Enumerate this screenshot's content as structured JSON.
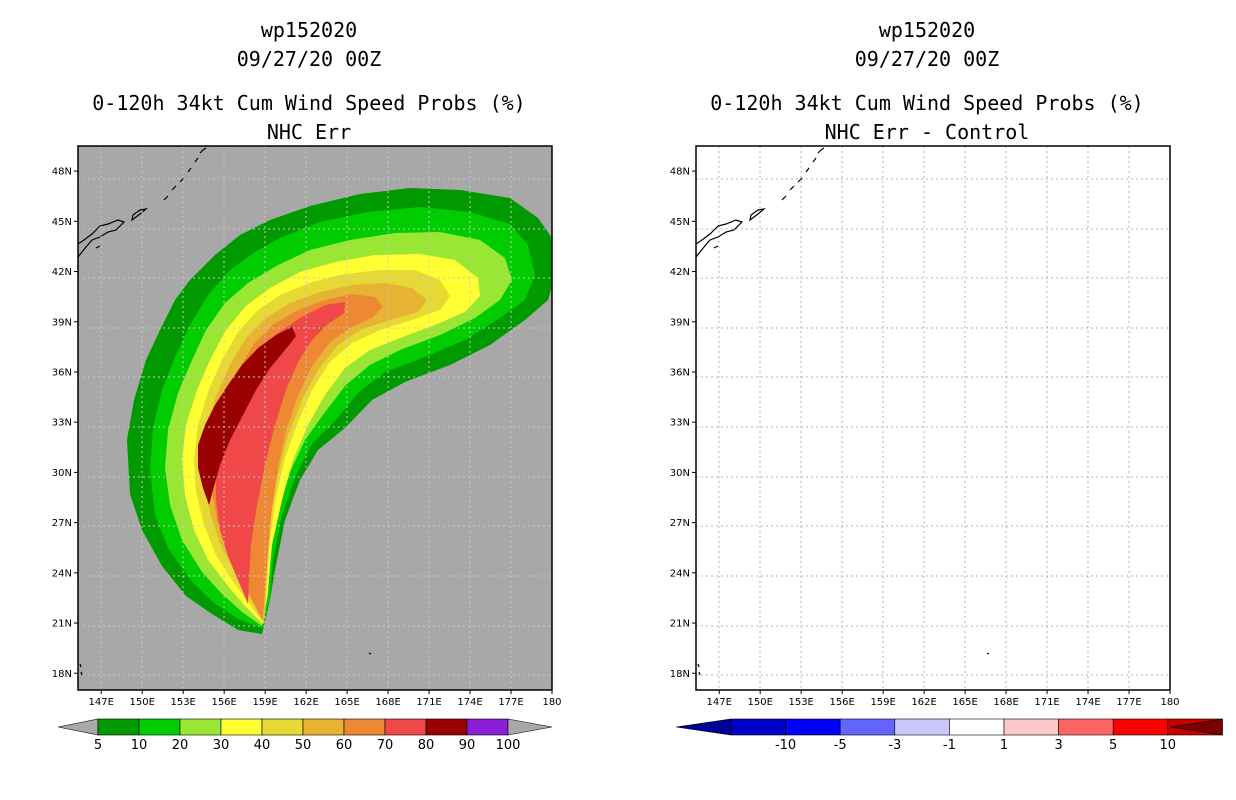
{
  "chart_data": [
    {
      "type": "filled-contour map",
      "storm_id": "wp152020",
      "date": "09/27/20 00Z",
      "title": "0-120h 34kt Cum Wind Speed Probs (%)",
      "subtitle": "NHC Err",
      "x_ticks": [
        "147E",
        "150E",
        "153E",
        "156E",
        "159E",
        "162E",
        "165E",
        "168E",
        "171E",
        "174E",
        "177E",
        "180"
      ],
      "y_ticks": [
        "48N",
        "45N",
        "42N",
        "39N",
        "36N",
        "33N",
        "30N",
        "27N",
        "24N",
        "21N",
        "18N"
      ],
      "x_range_deg_e": [
        145.3,
        180
      ],
      "y_range_deg_n": [
        17,
        49.5
      ],
      "background_color": "#a8a8a8",
      "colorbar": {
        "labels": [
          "5",
          "10",
          "20",
          "30",
          "40",
          "50",
          "60",
          "70",
          "80",
          "90",
          "100"
        ],
        "colors": [
          "#009900",
          "#00cc00",
          "#99e633",
          "#ffff33",
          "#e6d933",
          "#e6b333",
          "#ee8833",
          "#f04848",
          "#990000",
          "#8a1fd6"
        ],
        "under_color": "#a8a8a8",
        "over_color": "#a8a8a8"
      },
      "probability_regions": [
        {
          "min_pct": 5,
          "color": "#009900"
        },
        {
          "min_pct": 10,
          "color": "#00cc00"
        },
        {
          "min_pct": 20,
          "color": "#99e633"
        },
        {
          "min_pct": 30,
          "color": "#ffff33"
        },
        {
          "min_pct": 40,
          "color": "#e6d933"
        },
        {
          "min_pct": 50,
          "color": "#e6b333"
        },
        {
          "min_pct": 60,
          "color": "#ee8833"
        },
        {
          "min_pct": 70,
          "color": "#f04848"
        },
        {
          "min_pct": 80,
          "color": "#990000"
        }
      ]
    },
    {
      "type": "filled-contour map (difference)",
      "storm_id": "wp152020",
      "date": "09/27/20 00Z",
      "title": "0-120h 34kt Cum Wind Speed Probs (%)",
      "subtitle": "NHC Err - Control",
      "x_ticks": [
        "147E",
        "150E",
        "153E",
        "156E",
        "159E",
        "162E",
        "165E",
        "168E",
        "171E",
        "174E",
        "177E",
        "180"
      ],
      "y_ticks": [
        "48N",
        "45N",
        "42N",
        "39N",
        "36N",
        "33N",
        "30N",
        "27N",
        "24N",
        "21N",
        "18N"
      ],
      "x_range_deg_e": [
        145.3,
        180
      ],
      "y_range_deg_n": [
        17,
        49.5
      ],
      "background_color": "#ffffff",
      "grid": true,
      "colorbar": {
        "labels": [
          "-10",
          "-5",
          "-3",
          "-1",
          "1",
          "3",
          "5",
          "10"
        ],
        "colors": [
          "#0000c8",
          "#0000ff",
          "#6464ff",
          "#c8c8ff",
          "#ffffff",
          "#ffc8c8",
          "#ff6464",
          "#ff0000",
          "#c80000"
        ],
        "under_color": "#000096",
        "over_color": "#780000"
      }
    }
  ]
}
